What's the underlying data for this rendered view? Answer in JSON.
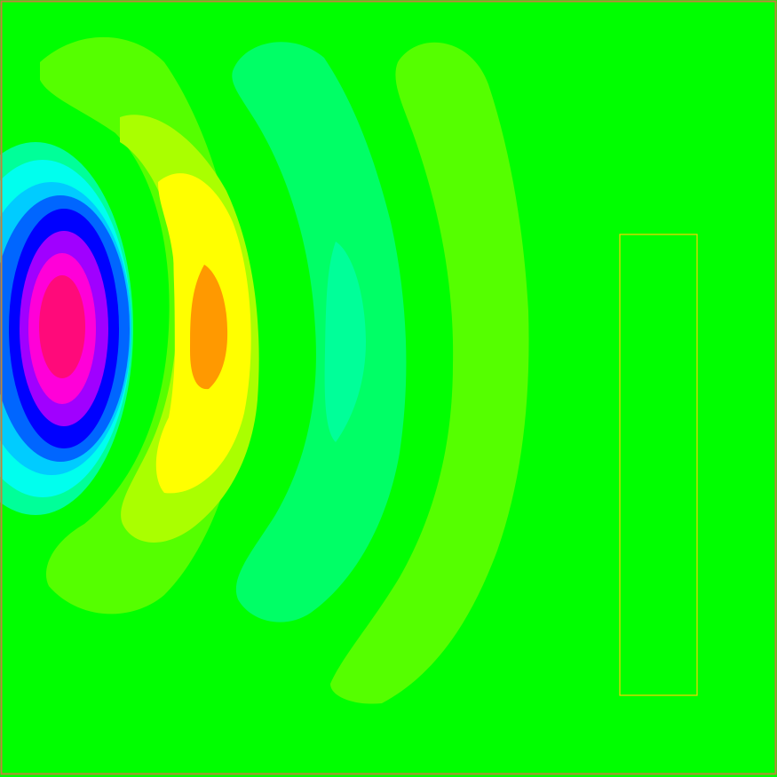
{
  "figure": {
    "kind": "2D scalar field contour plot (wave pattern emanating from left edge)",
    "colors": {
      "background": "#00ff00",
      "frame_border": "#c0843c",
      "obstacle_outline": "#ffd000",
      "levels": {
        "most_negative_core": "#ff0a7a",
        "negative_1": "#ff00d8",
        "negative_2": "#a000ff",
        "negative_3": "#0000ff",
        "negative_4": "#0066ff",
        "negative_5": "#00ccff",
        "negative_6": "#00ffee",
        "negative_7": "#00ff99",
        "weak_negative": "#00ff66",
        "weak_positive": "#55ff00",
        "positive_1": "#aaff00",
        "positive_2": "#ffff00",
        "positive_peak": "#ff9900"
      }
    },
    "obstacle": {
      "shape": "rectangle",
      "style": "outline only"
    }
  }
}
